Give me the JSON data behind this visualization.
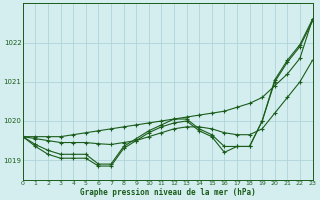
{
  "title": "Graphe pression niveau de la mer (hPa)",
  "background_color": "#d4eef0",
  "grid_color": "#aed4d8",
  "line_color": "#1a5c1a",
  "x_min": 0,
  "x_max": 23,
  "y_min": 1018.5,
  "y_max": 1023.0,
  "yticks": [
    1019,
    1020,
    1021,
    1022
  ],
  "xticks": [
    0,
    1,
    2,
    3,
    4,
    5,
    6,
    7,
    8,
    9,
    10,
    11,
    12,
    13,
    14,
    15,
    16,
    17,
    18,
    19,
    20,
    21,
    22,
    23
  ],
  "series": [
    [
      1019.6,
      1019.4,
      1019.25,
      1019.15,
      1019.15,
      1019.15,
      1018.9,
      1018.9,
      1019.35,
      1019.55,
      1019.75,
      1019.9,
      1020.05,
      1020.05,
      1019.8,
      1019.65,
      1019.35,
      1019.35,
      1019.35,
      1020.0,
      1021.05,
      1021.55,
      1021.95,
      1022.6
    ],
    [
      1019.6,
      1019.35,
      1019.15,
      1019.05,
      1019.05,
      1019.05,
      1018.85,
      1018.85,
      1019.3,
      1019.5,
      1019.7,
      1019.85,
      1019.95,
      1020.0,
      1019.75,
      1019.6,
      1019.2,
      1019.35,
      1019.35,
      1020.0,
      1021.0,
      1021.5,
      1021.9,
      1022.55
    ],
    [
      1019.6,
      1019.6,
      1019.6,
      1019.6,
      1019.65,
      1019.7,
      1019.75,
      1019.8,
      1019.85,
      1019.9,
      1019.95,
      1020.0,
      1020.05,
      1020.1,
      1020.15,
      1020.2,
      1020.25,
      1020.35,
      1020.45,
      1020.6,
      1020.9,
      1021.2,
      1021.6,
      1022.6
    ],
    [
      1019.6,
      1019.55,
      1019.5,
      1019.45,
      1019.45,
      1019.45,
      1019.42,
      1019.4,
      1019.45,
      1019.5,
      1019.6,
      1019.7,
      1019.8,
      1019.85,
      1019.85,
      1019.8,
      1019.7,
      1019.65,
      1019.65,
      1019.8,
      1020.2,
      1020.6,
      1021.0,
      1021.55
    ]
  ]
}
